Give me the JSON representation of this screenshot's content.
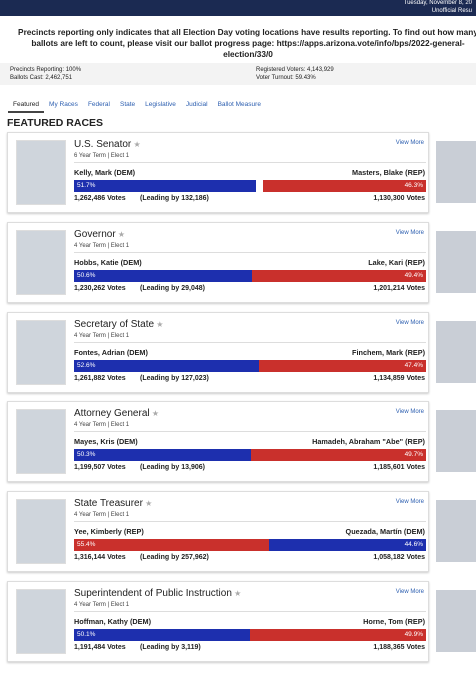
{
  "header": {
    "date": "Tuesday, November 8, 20",
    "status": "Unofficial Resu"
  },
  "notice": "Precincts reporting only indicates that all Election Day voting locations have results reporting. To find out how many ballots are left to count, please visit our ballot progress page: https://apps.arizona.vote/info/bps/2022-general-election/33/0",
  "stats": {
    "left": [
      "Precincts Reporting: 100%",
      "Ballots Cast: 2,462,751"
    ],
    "right": [
      "Registered Voters: 4,143,929",
      "Voter Turnout: 59.43%"
    ]
  },
  "tabs": [
    "Featured",
    "My Races",
    "Federal",
    "State",
    "Legislative",
    "Judicial",
    "Ballot Measure"
  ],
  "section_title": "FEATURED RACES",
  "view_more": "View More",
  "races": [
    {
      "office": "U.S. Senator",
      "term": "6 Year Term  |  Elect 1",
      "candidates": [
        {
          "name": "Kelly, Mark (DEM)",
          "party": "DEM",
          "pct": "51.7%",
          "votes": "1,262,486 Votes",
          "lead": "(Leading by 132,186)"
        },
        {
          "name": "Masters, Blake (REP)",
          "party": "REP",
          "pct": "46.3%",
          "votes": "1,130,300 Votes"
        }
      ]
    },
    {
      "office": "Governor",
      "term": "4 Year Term  |  Elect 1",
      "candidates": [
        {
          "name": "Hobbs, Katie (DEM)",
          "party": "DEM",
          "pct": "50.6%",
          "votes": "1,230,262 Votes",
          "lead": "(Leading by 29,048)"
        },
        {
          "name": "Lake, Kari (REP)",
          "party": "REP",
          "pct": "49.4%",
          "votes": "1,201,214 Votes"
        }
      ]
    },
    {
      "office": "Secretary of State",
      "term": "4 Year Term  |  Elect 1",
      "candidates": [
        {
          "name": "Fontes, Adrian (DEM)",
          "party": "DEM",
          "pct": "52.6%",
          "votes": "1,261,882 Votes",
          "lead": "(Leading by 127,023)"
        },
        {
          "name": "Finchem, Mark (REP)",
          "party": "REP",
          "pct": "47.4%",
          "votes": "1,134,859 Votes"
        }
      ]
    },
    {
      "office": "Attorney General",
      "term": "4 Year Term  |  Elect 1",
      "candidates": [
        {
          "name": "Mayes, Kris (DEM)",
          "party": "DEM",
          "pct": "50.3%",
          "votes": "1,199,507 Votes",
          "lead": "(Leading by 13,906)"
        },
        {
          "name": "Hamadeh, Abraham \"Abe\" (REP)",
          "party": "REP",
          "pct": "49.7%",
          "votes": "1,185,601 Votes"
        }
      ]
    },
    {
      "office": "State Treasurer",
      "term": "4 Year Term  |  Elect 1",
      "candidates": [
        {
          "name": "Yee, Kimberly (REP)",
          "party": "REP",
          "pct": "55.4%",
          "votes": "1,316,144 Votes",
          "lead": "(Leading by 257,962)"
        },
        {
          "name": "Quezada, Martín (DEM)",
          "party": "DEM",
          "pct": "44.6%",
          "votes": "1,058,182 Votes"
        }
      ]
    },
    {
      "office": "Superintendent of Public Instruction",
      "term": "4 Year Term  |  Elect 1",
      "candidates": [
        {
          "name": "Hoffman, Kathy (DEM)",
          "party": "DEM",
          "pct": "50.1%",
          "votes": "1,191,484 Votes",
          "lead": "(Leading by 3,119)"
        },
        {
          "name": "Horne, Tom (REP)",
          "party": "REP",
          "pct": "49.9%",
          "votes": "1,188,365 Votes"
        }
      ]
    }
  ]
}
